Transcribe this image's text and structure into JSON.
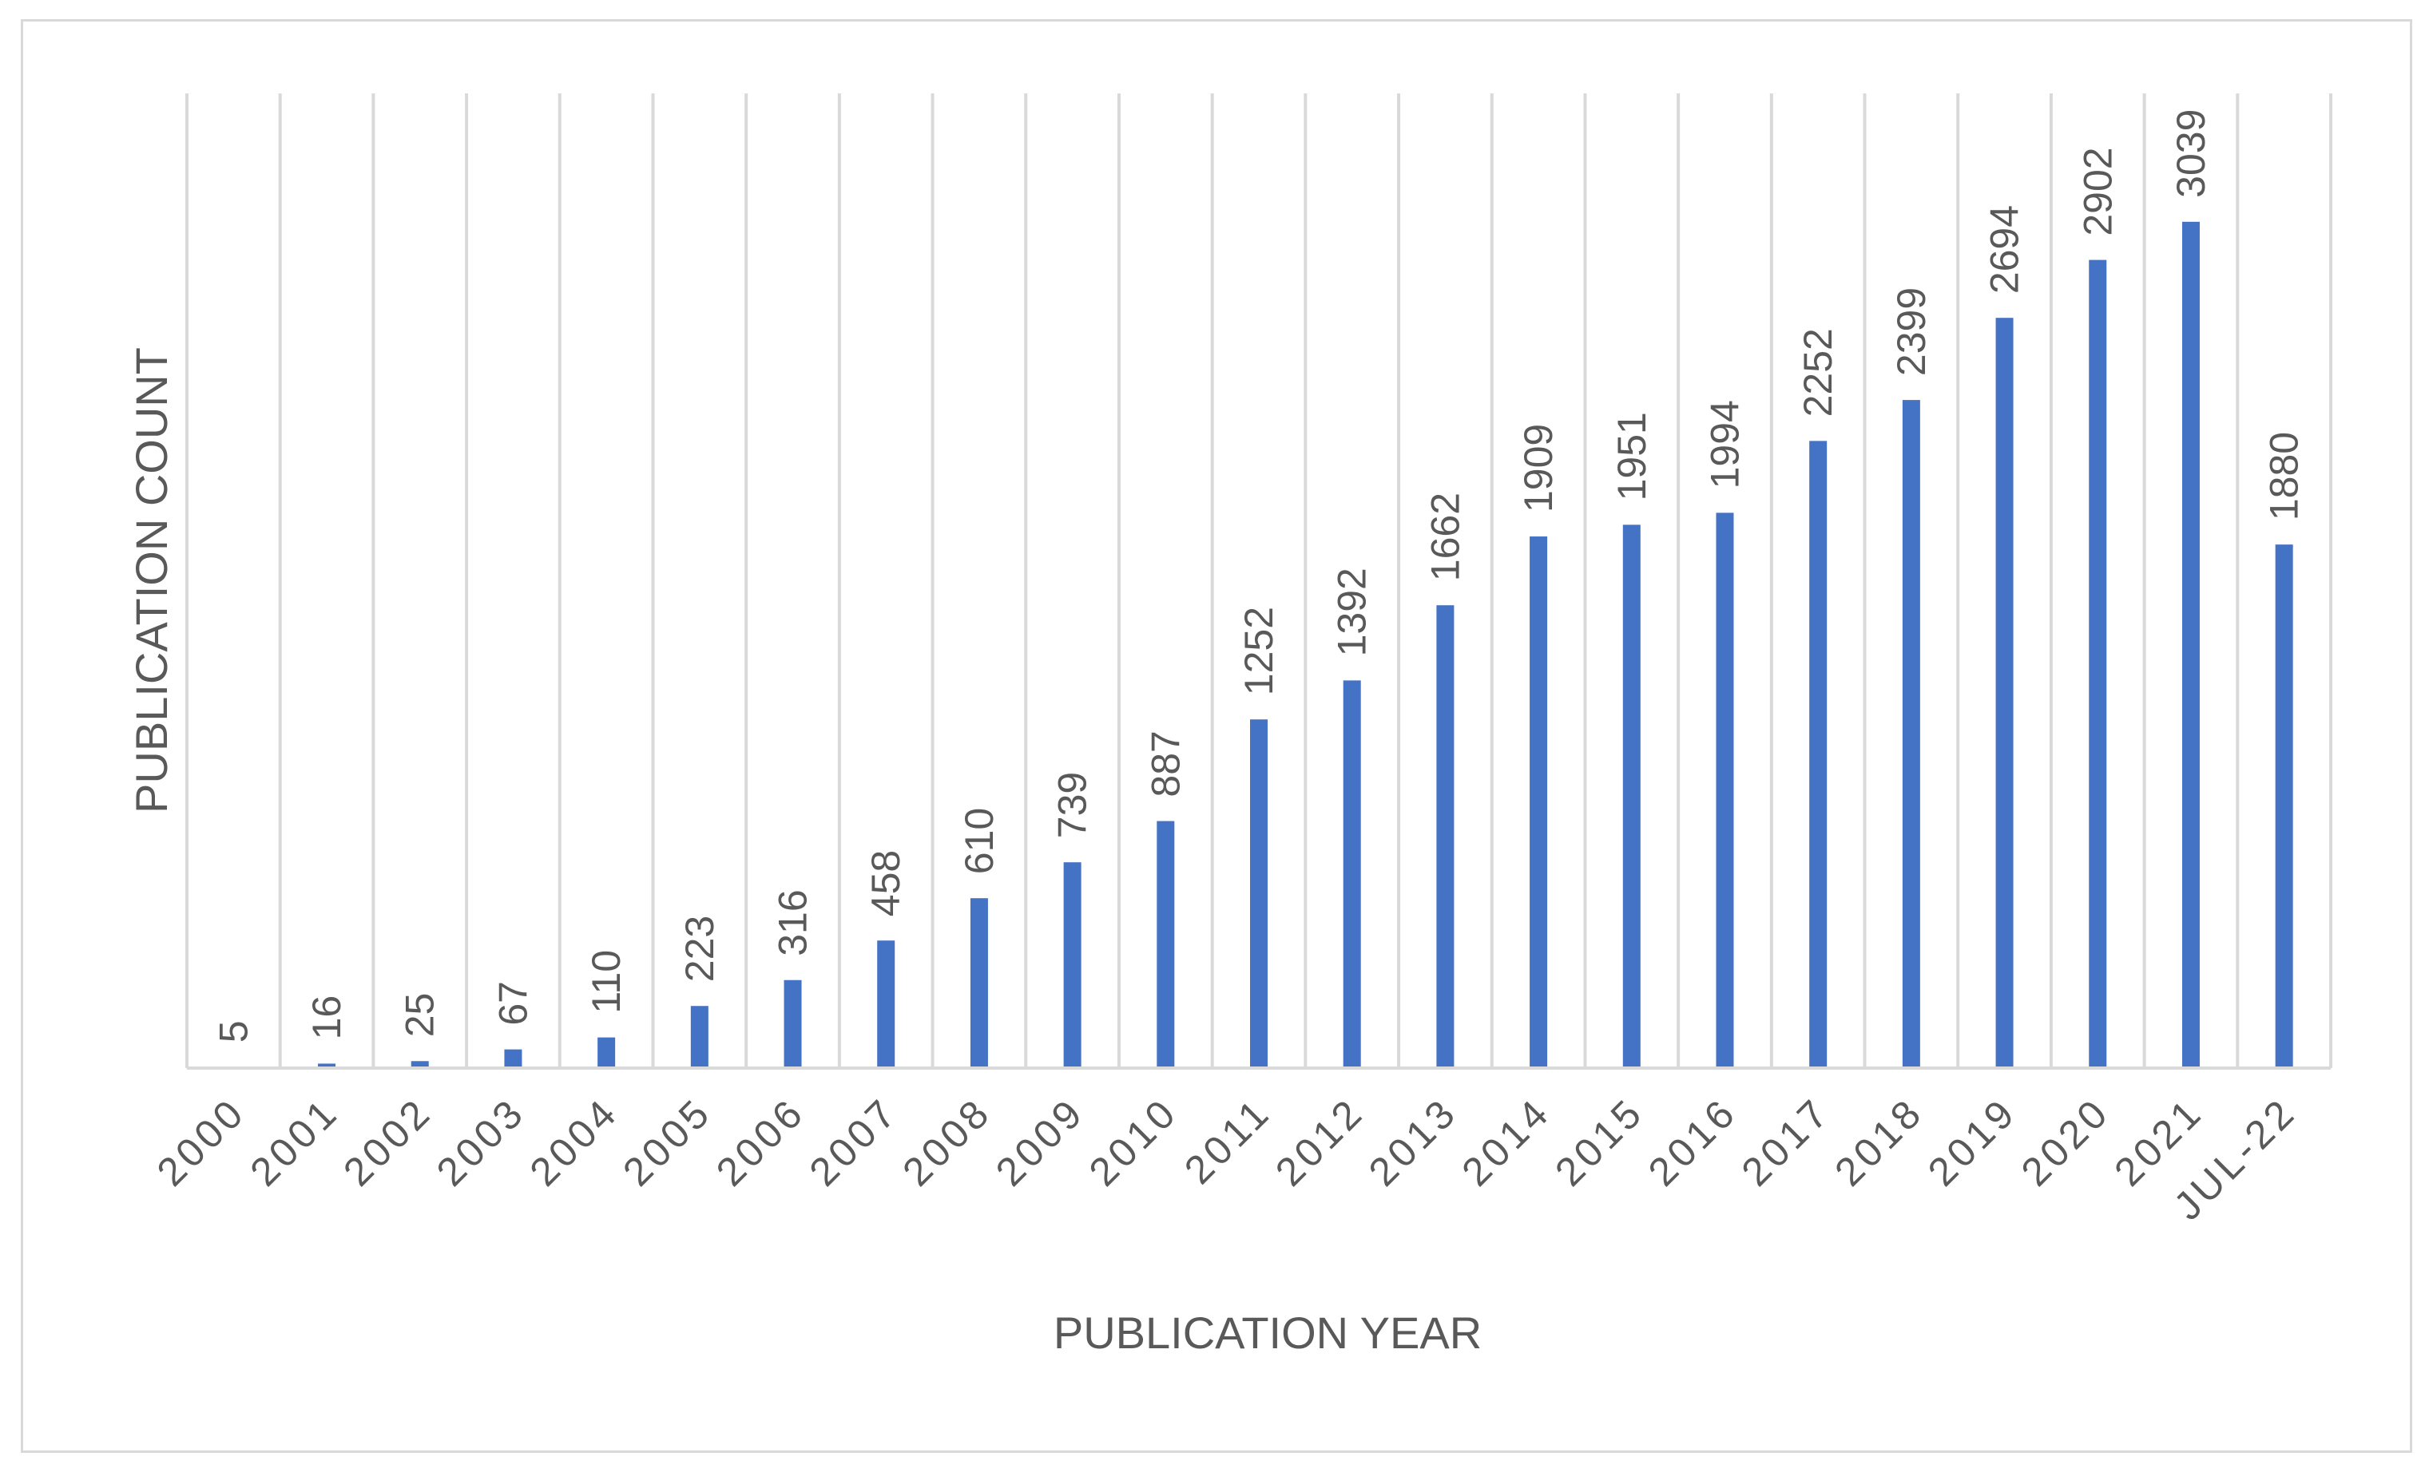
{
  "chart_data": {
    "type": "bar",
    "title": "",
    "xlabel": "PUBLICATION YEAR",
    "ylabel": "PUBLICATION COUNT",
    "categories": [
      "2000",
      "2001",
      "2002",
      "2003",
      "2004",
      "2005",
      "2006",
      "2007",
      "2008",
      "2009",
      "2010",
      "2011",
      "2012",
      "2013",
      "2014",
      "2015",
      "2016",
      "2017",
      "2018",
      "2019",
      "2020",
      "2021",
      "JUL-22"
    ],
    "values": [
      5,
      16,
      25,
      67,
      110,
      223,
      316,
      458,
      610,
      739,
      887,
      1252,
      1392,
      1662,
      1909,
      1951,
      1994,
      2252,
      2399,
      2694,
      2902,
      3039,
      1880
    ],
    "ylim": [
      0,
      3500
    ],
    "grid": "vertical",
    "legend": "none",
    "colors": {
      "bar": "#4472c4",
      "grid": "#d9d9d9",
      "text": "#595959"
    }
  }
}
